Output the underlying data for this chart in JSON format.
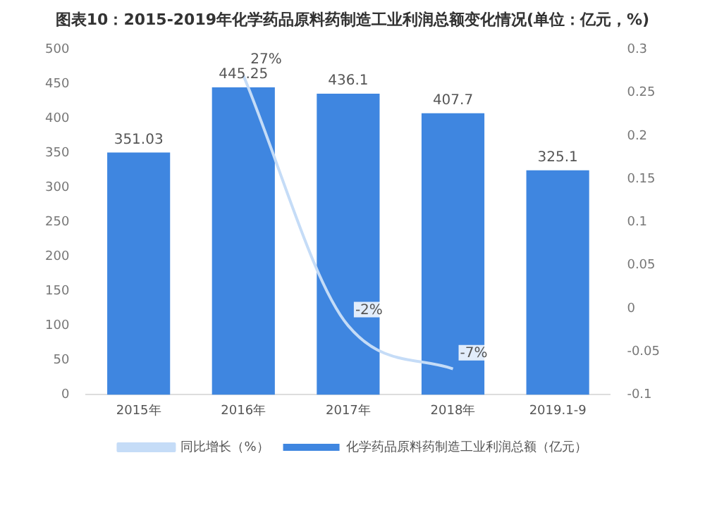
{
  "chart_data": {
    "type": "bar",
    "title": "图表10：2015-2019年化学药品原料药制造工业利润总额变化情况(单位：亿元，%)",
    "categories": [
      "2015年",
      "2016年",
      "2017年",
      "2018年",
      "2019.1-9"
    ],
    "series": [
      {
        "name": "化学药品原料药制造工业利润总额（亿元）",
        "color": "#3f86e0",
        "values": [
          351.03,
          445.25,
          436.1,
          407.7,
          325.1
        ],
        "value_labels": [
          "351.03",
          "445.25",
          "436.1",
          "407.7",
          "325.1"
        ]
      },
      {
        "name": "同比增长（%）",
        "type": "line",
        "axis": "y2",
        "color": "#c5dcf7",
        "values": [
          null,
          0.27,
          -0.02,
          -0.07,
          null
        ],
        "value_labels": [
          null,
          "27%",
          "-2%",
          "-7%",
          null
        ]
      }
    ],
    "ylim": [
      0,
      500
    ],
    "yticks": [
      0,
      50,
      100,
      150,
      200,
      250,
      300,
      350,
      400,
      450,
      500
    ],
    "y2lim": [
      -0.1,
      0.3
    ],
    "y2ticks": [
      -0.1,
      -0.05,
      0,
      0.05,
      0.1,
      0.15,
      0.2,
      0.25,
      0.3
    ],
    "legend": "bottom",
    "marker": "none"
  }
}
